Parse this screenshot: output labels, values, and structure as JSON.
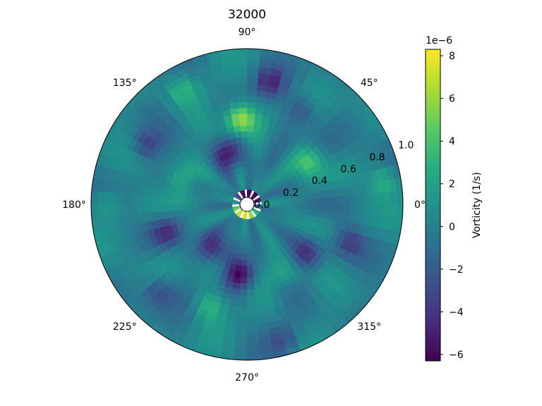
{
  "chart_data": {
    "type": "heatmap",
    "projection": "polar",
    "title": "32000",
    "theta_ticks": [
      "0°",
      "45°",
      "90°",
      "135°",
      "180°",
      "225°",
      "270°",
      "315°"
    ],
    "r_ticks": [
      "0.0",
      "0.2",
      "0.4",
      "0.6",
      "0.8",
      "1.0"
    ],
    "r_range": [
      0.0,
      1.0
    ],
    "colormap": "viridis",
    "colorbar": {
      "label": "Vorticity (1/s)",
      "offset_text": "1e−6",
      "ticks": [
        "−6",
        "−4",
        "−2",
        "0",
        "2",
        "4",
        "6",
        "8"
      ],
      "range": [
        -6.3,
        8.3
      ]
    },
    "blobs": [
      {
        "theta": 95,
        "r": 0.55,
        "value": 7.0
      },
      {
        "theta": 35,
        "r": 0.48,
        "value": 4.0
      },
      {
        "theta": 160,
        "r": 0.45,
        "value": 3.5
      },
      {
        "theta": 10,
        "r": 0.9,
        "value": 3.0
      },
      {
        "theta": 300,
        "r": 0.5,
        "value": 2.5
      },
      {
        "theta": 250,
        "r": 0.7,
        "value": 3.0
      },
      {
        "theta": 120,
        "r": 0.85,
        "value": 3.0
      },
      {
        "theta": 110,
        "r": 0.35,
        "value": -5.0
      },
      {
        "theta": 265,
        "r": 0.45,
        "value": -5.0
      },
      {
        "theta": 235,
        "r": 0.35,
        "value": -4.5
      },
      {
        "theta": 320,
        "r": 0.5,
        "value": -4.0
      },
      {
        "theta": 200,
        "r": 0.55,
        "value": -3.5
      },
      {
        "theta": 80,
        "r": 0.8,
        "value": -4.0
      },
      {
        "theta": 150,
        "r": 0.75,
        "value": -3.5
      },
      {
        "theta": 60,
        "r": 0.7,
        "value": -3.0
      },
      {
        "theta": 340,
        "r": 0.7,
        "value": -3.0
      },
      {
        "theta": 225,
        "r": 0.8,
        "value": -3.0
      },
      {
        "theta": 285,
        "r": 0.9,
        "value": -2.5
      },
      {
        "theta": 180,
        "r": 0.9,
        "value": 2.5
      }
    ],
    "core_ring": {
      "r": 0.06,
      "values_range": [
        -6.0,
        8.0
      ]
    }
  }
}
